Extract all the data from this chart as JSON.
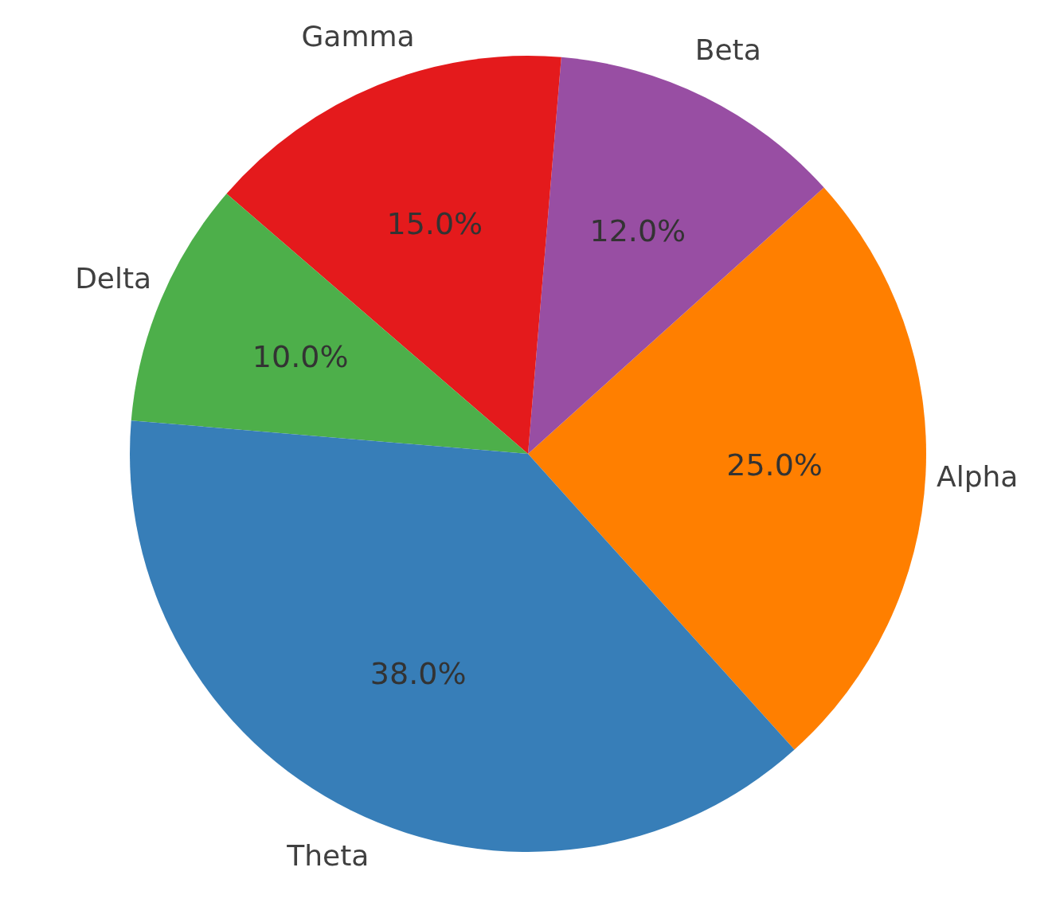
{
  "chart_data": {
    "type": "pie",
    "categories": [
      "Alpha",
      "Beta",
      "Gamma",
      "Delta",
      "Theta"
    ],
    "values": [
      25,
      12,
      15,
      10,
      38
    ],
    "colors": [
      "#ff7f00",
      "#984ea3",
      "#e41a1c",
      "#4daf4a",
      "#377eb8"
    ],
    "value_labels": [
      "25.0%",
      "12.0%",
      "15.0%",
      "10.0%",
      "38.0%"
    ]
  }
}
